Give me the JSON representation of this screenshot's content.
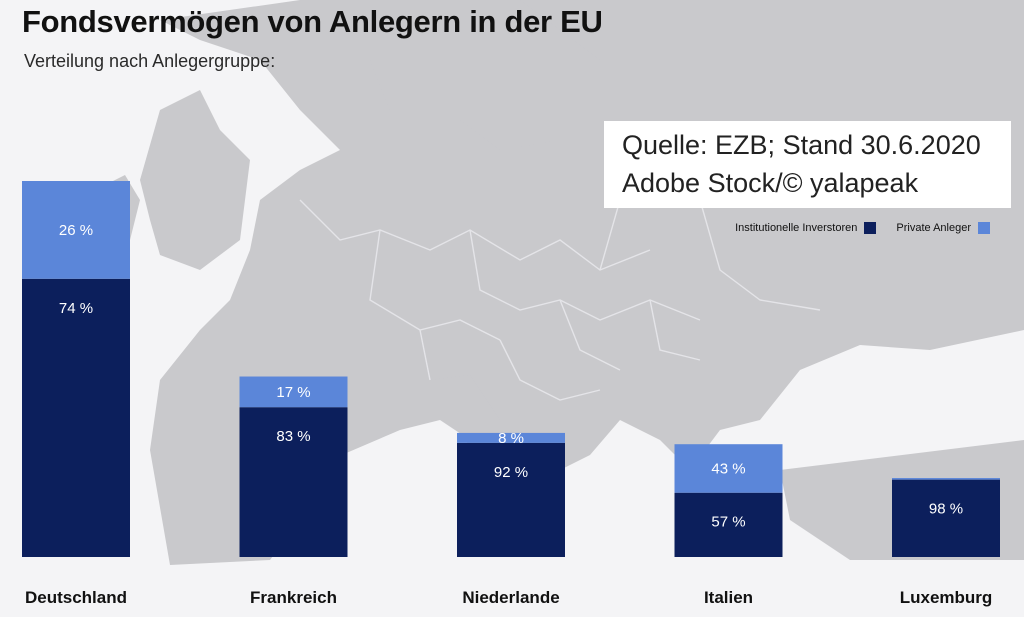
{
  "title": "Fondsvermögen von Anlegern in der EU",
  "subtitle": "Verteilung nach Anlegergruppe:",
  "source": {
    "line1": "Quelle: EZB; Stand 30.6.2020",
    "line2": "Adobe Stock/© yalapeak"
  },
  "colors": {
    "institutional": "#0c1f5c",
    "private": "#5b86d9",
    "background_map": "#c9c9cc"
  },
  "chart_data": {
    "type": "bar",
    "stacked": true,
    "orientation": "vertical",
    "categories": [
      "Deutschland",
      "Frankreich",
      "Niederlande",
      "Italien",
      "Luxemburg"
    ],
    "series": [
      {
        "name": "Institutionelle Inverstoren",
        "color": "#0c1f5c",
        "values": [
          74,
          83,
          92,
          57,
          98
        ],
        "labels": [
          "74 %",
          "83 %",
          "92 %",
          "57 %",
          "98 %"
        ]
      },
      {
        "name": "Private Anleger",
        "color": "#5b86d9",
        "values": [
          26,
          17,
          8,
          43,
          2
        ],
        "labels": [
          "26 %",
          "17 %",
          "8 %",
          "43 %",
          ""
        ]
      }
    ],
    "totals_relative": [
      100,
      48,
      33,
      30,
      21
    ],
    "legend_position": "top-right",
    "grid": false
  }
}
